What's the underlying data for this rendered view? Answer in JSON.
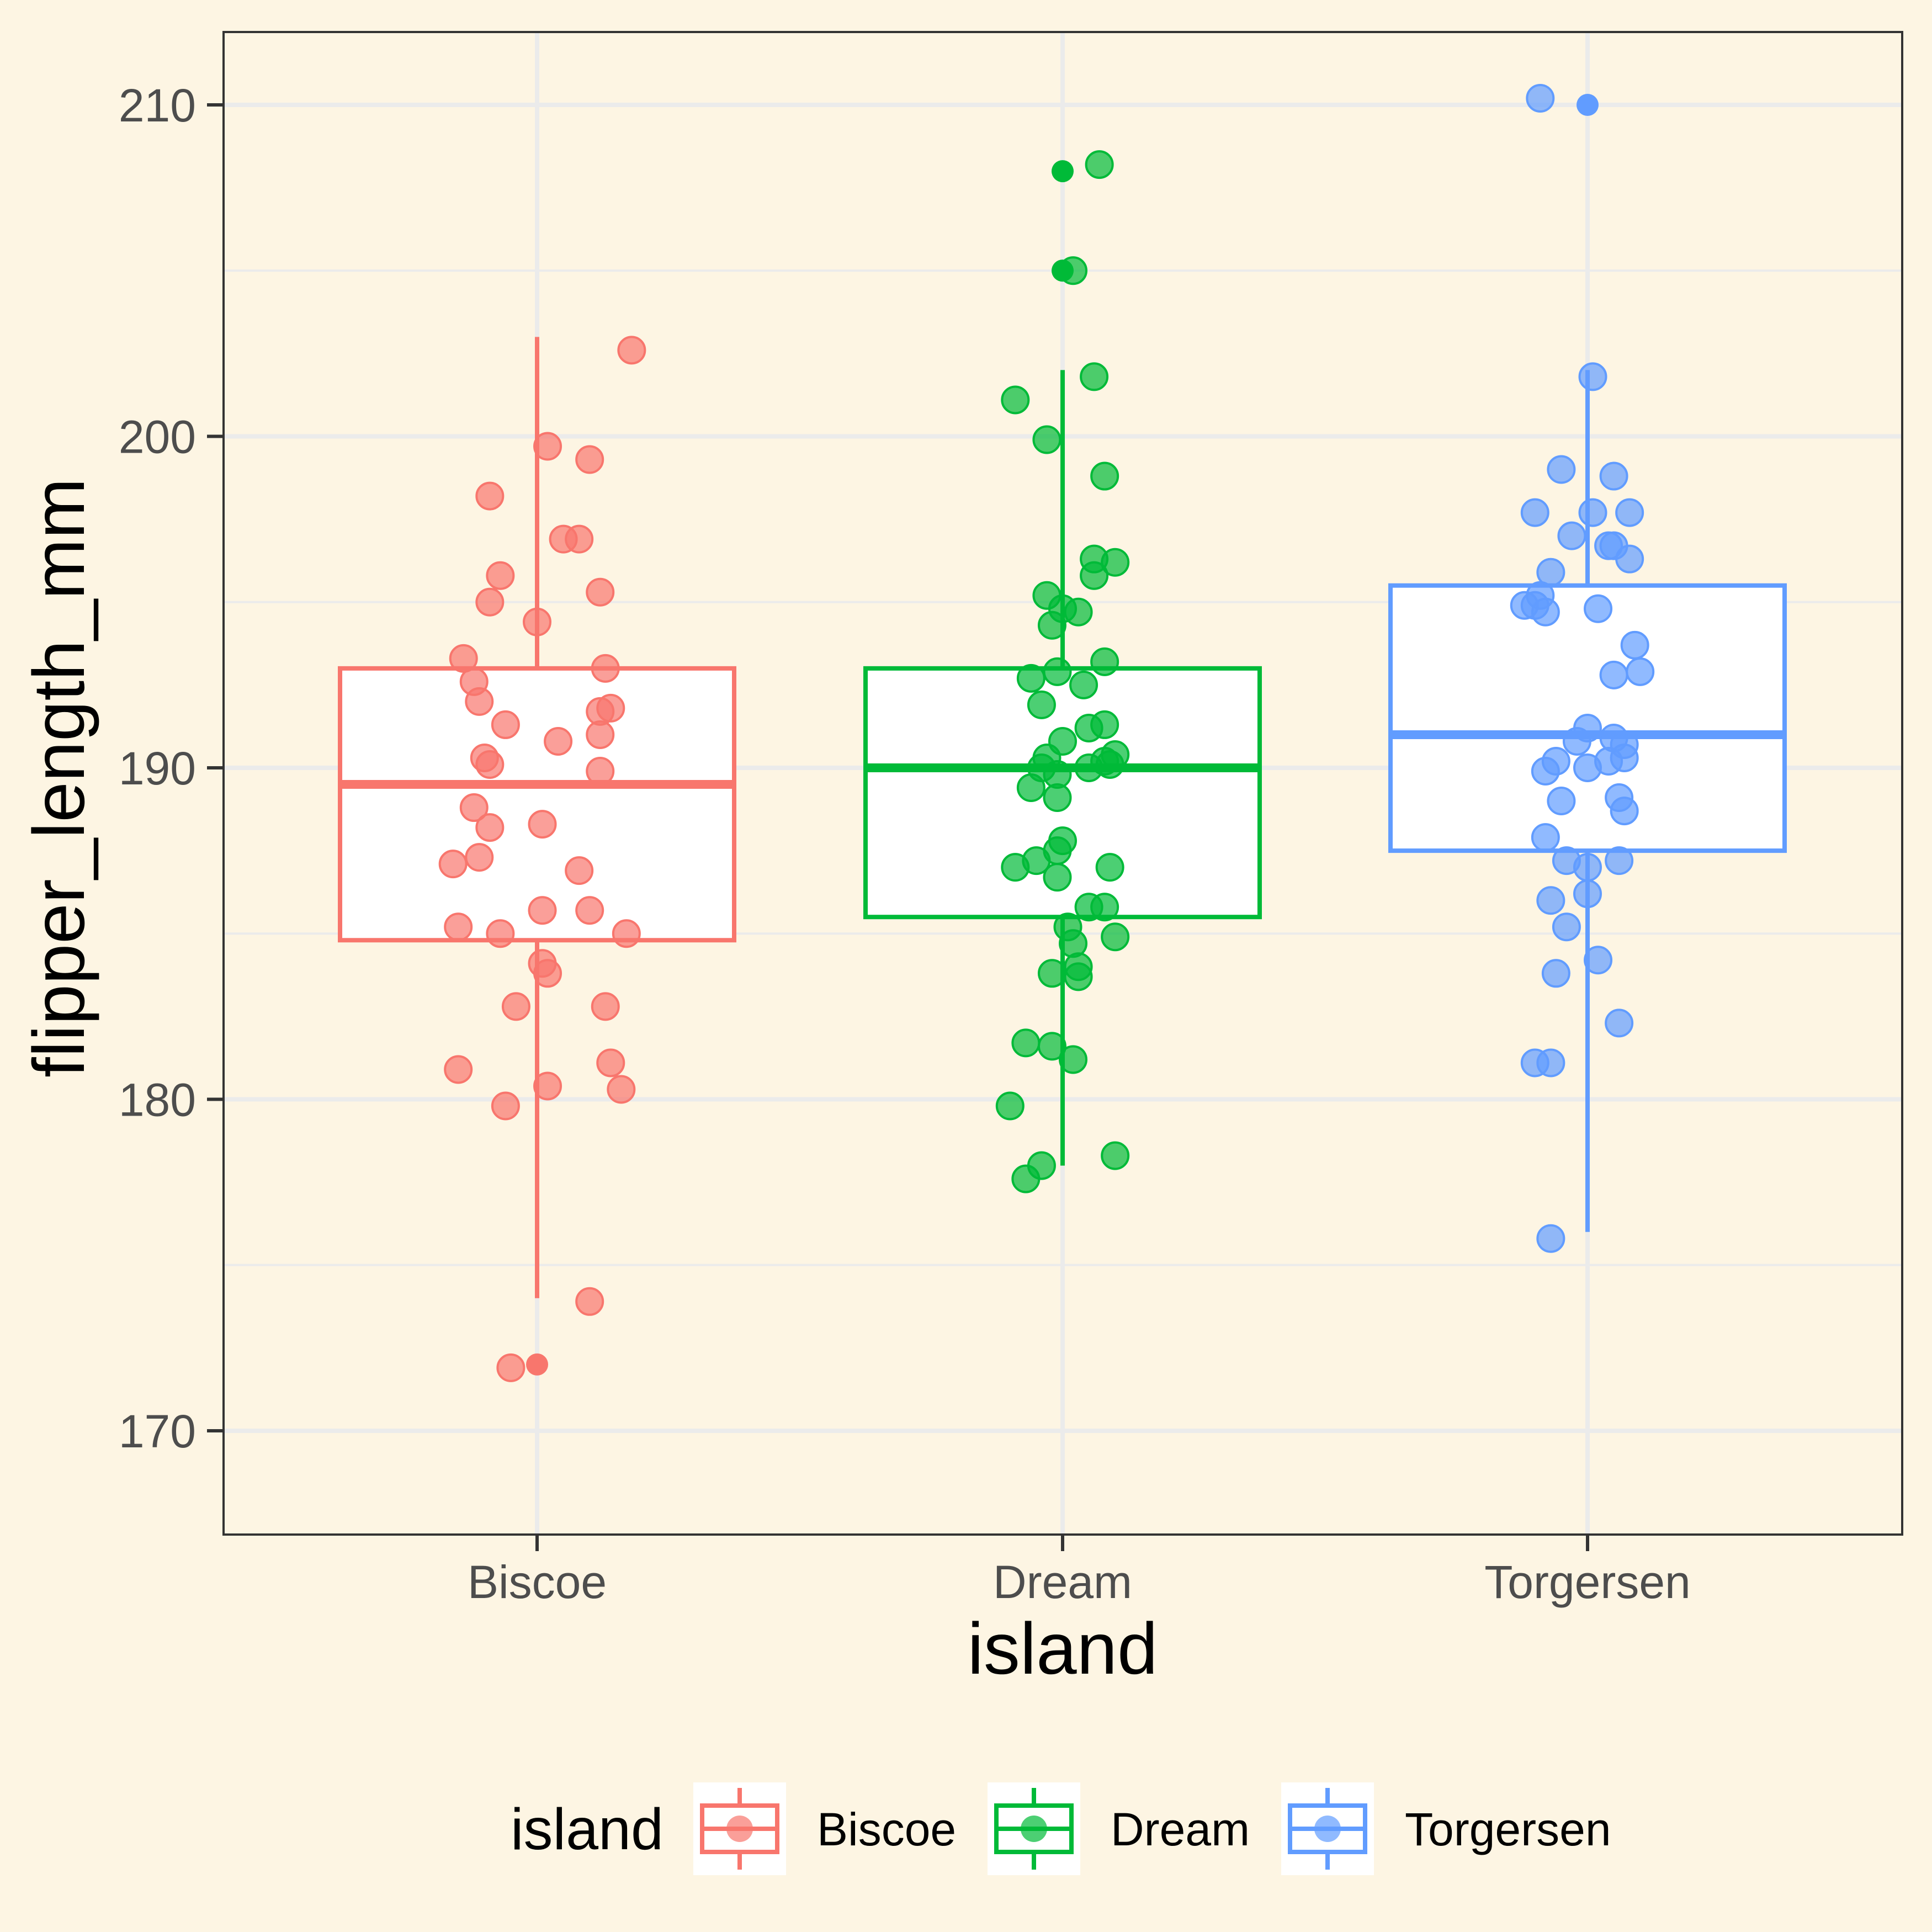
{
  "chart_data": {
    "type": "boxplot",
    "xlabel": "island",
    "ylabel": "flipper_length_mm",
    "ylim": [
      170,
      212
    ],
    "y_ticks": [
      170,
      180,
      190,
      200,
      210
    ],
    "y_tick_labels": [
      "170",
      "180",
      "190",
      "200",
      "210"
    ],
    "categories": [
      "Biscoe",
      "Dream",
      "Torgersen"
    ],
    "grid": true,
    "legend": {
      "title": "island",
      "position": "bottom",
      "items": [
        "Biscoe",
        "Dream",
        "Torgersen"
      ]
    },
    "series": [
      {
        "name": "Biscoe",
        "color": "#f8766d",
        "box": {
          "whisker_low": 174,
          "q1": 184.8,
          "median": 189.5,
          "q3": 193,
          "whisker_high": 203
        },
        "outliers": [
          172
        ],
        "points": [
          [
            0.18,
            202.6
          ],
          [
            0.02,
            199.7
          ],
          [
            0.1,
            199.3
          ],
          [
            -0.09,
            198.2
          ],
          [
            0.05,
            196.9
          ],
          [
            0.08,
            196.9
          ],
          [
            -0.07,
            195.8
          ],
          [
            -0.09,
            195.0
          ],
          [
            0.12,
            195.3
          ],
          [
            0.0,
            194.4
          ],
          [
            -0.14,
            193.3
          ],
          [
            0.13,
            193.0
          ],
          [
            -0.12,
            192.6
          ],
          [
            -0.11,
            192.0
          ],
          [
            0.12,
            191.7
          ],
          [
            0.14,
            191.8
          ],
          [
            -0.06,
            191.3
          ],
          [
            0.04,
            190.8
          ],
          [
            0.12,
            191.0
          ],
          [
            -0.1,
            190.3
          ],
          [
            -0.09,
            190.1
          ],
          [
            0.12,
            189.9
          ],
          [
            -0.12,
            188.8
          ],
          [
            -0.09,
            188.2
          ],
          [
            0.01,
            188.3
          ],
          [
            -0.11,
            187.3
          ],
          [
            -0.16,
            187.1
          ],
          [
            0.08,
            186.9
          ],
          [
            0.01,
            185.7
          ],
          [
            0.1,
            185.7
          ],
          [
            -0.15,
            185.2
          ],
          [
            -0.07,
            185.0
          ],
          [
            0.17,
            185.0
          ],
          [
            0.01,
            184.1
          ],
          [
            0.02,
            183.8
          ],
          [
            -0.04,
            182.8
          ],
          [
            0.13,
            182.8
          ],
          [
            -0.15,
            180.9
          ],
          [
            0.14,
            181.1
          ],
          [
            0.02,
            180.4
          ],
          [
            -0.06,
            179.8
          ],
          [
            0.16,
            180.3
          ],
          [
            0.1,
            173.9
          ],
          [
            -0.05,
            171.9
          ]
        ]
      },
      {
        "name": "Dream",
        "color": "#00ba38",
        "box": {
          "whisker_low": 178,
          "q1": 185.5,
          "median": 190,
          "q3": 193,
          "whisker_high": 202
        },
        "outliers": [
          208,
          205
        ],
        "points": [
          [
            0.07,
            208.2
          ],
          [
            0.02,
            205.0
          ],
          [
            0.06,
            201.8
          ],
          [
            -0.09,
            201.1
          ],
          [
            -0.03,
            199.9
          ],
          [
            0.08,
            198.8
          ],
          [
            0.06,
            196.3
          ],
          [
            0.1,
            196.2
          ],
          [
            0.06,
            195.8
          ],
          [
            -0.03,
            195.2
          ],
          [
            0.0,
            194.8
          ],
          [
            0.03,
            194.7
          ],
          [
            -0.02,
            194.3
          ],
          [
            0.08,
            193.2
          ],
          [
            -0.06,
            192.7
          ],
          [
            -0.01,
            192.9
          ],
          [
            0.04,
            192.5
          ],
          [
            -0.04,
            191.9
          ],
          [
            0.08,
            191.3
          ],
          [
            0.05,
            191.2
          ],
          [
            0.0,
            190.8
          ],
          [
            0.1,
            190.4
          ],
          [
            -0.03,
            190.3
          ],
          [
            0.08,
            190.2
          ],
          [
            -0.04,
            190.0
          ],
          [
            0.05,
            190.0
          ],
          [
            0.09,
            190.1
          ],
          [
            -0.01,
            189.8
          ],
          [
            -0.06,
            189.4
          ],
          [
            -0.01,
            189.1
          ],
          [
            0.0,
            187.8
          ],
          [
            -0.01,
            187.5
          ],
          [
            -0.09,
            187.0
          ],
          [
            -0.05,
            187.2
          ],
          [
            0.09,
            187.0
          ],
          [
            -0.01,
            186.7
          ],
          [
            0.05,
            185.8
          ],
          [
            0.08,
            185.8
          ],
          [
            0.01,
            185.2
          ],
          [
            0.02,
            184.7
          ],
          [
            0.03,
            184.0
          ],
          [
            -0.02,
            183.8
          ],
          [
            0.03,
            183.7
          ],
          [
            0.1,
            184.9
          ],
          [
            -0.07,
            181.7
          ],
          [
            -0.02,
            181.6
          ],
          [
            0.02,
            181.2
          ],
          [
            -0.1,
            179.8
          ],
          [
            0.1,
            178.3
          ],
          [
            -0.04,
            178.0
          ],
          [
            -0.07,
            177.6
          ]
        ]
      },
      {
        "name": "Torgersen",
        "color": "#619cff",
        "box": {
          "whisker_low": 176,
          "q1": 187.5,
          "median": 191,
          "q3": 195.5,
          "whisker_high": 202
        },
        "outliers": [
          210
        ],
        "points": [
          [
            -0.09,
            210.2
          ],
          [
            0.01,
            201.8
          ],
          [
            -0.05,
            199.0
          ],
          [
            0.05,
            198.8
          ],
          [
            -0.1,
            197.7
          ],
          [
            0.01,
            197.7
          ],
          [
            0.08,
            197.7
          ],
          [
            0.04,
            196.7
          ],
          [
            -0.03,
            197.0
          ],
          [
            0.05,
            196.7
          ],
          [
            0.08,
            196.3
          ],
          [
            -0.07,
            195.9
          ],
          [
            -0.09,
            195.2
          ],
          [
            -0.1,
            194.9
          ],
          [
            -0.08,
            194.7
          ],
          [
            -0.12,
            194.9
          ],
          [
            0.02,
            194.8
          ],
          [
            0.09,
            193.7
          ],
          [
            0.1,
            192.9
          ],
          [
            0.05,
            192.8
          ],
          [
            0.0,
            191.2
          ],
          [
            0.05,
            190.9
          ],
          [
            0.07,
            190.7
          ],
          [
            -0.02,
            190.8
          ],
          [
            -0.06,
            190.2
          ],
          [
            0.04,
            190.2
          ],
          [
            0.07,
            190.3
          ],
          [
            0.0,
            190.0
          ],
          [
            -0.08,
            189.9
          ],
          [
            -0.05,
            189.0
          ],
          [
            0.06,
            189.1
          ],
          [
            0.07,
            188.7
          ],
          [
            -0.08,
            187.9
          ],
          [
            -0.04,
            187.2
          ],
          [
            0.0,
            187.0
          ],
          [
            0.06,
            187.2
          ],
          [
            -0.07,
            186.0
          ],
          [
            0.0,
            186.2
          ],
          [
            -0.04,
            185.2
          ],
          [
            0.02,
            184.2
          ],
          [
            -0.06,
            183.8
          ],
          [
            0.06,
            182.3
          ],
          [
            -0.1,
            181.1
          ],
          [
            -0.07,
            181.1
          ],
          [
            -0.07,
            175.8
          ]
        ]
      }
    ]
  },
  "colors": {
    "page_background": "#fdf5e3",
    "grid": "#ebebeb",
    "axis_line": "#333333",
    "tick_text": "#4d4d4d",
    "box_fill": "#ffffff",
    "legend_key_fill": "#ffffff"
  }
}
